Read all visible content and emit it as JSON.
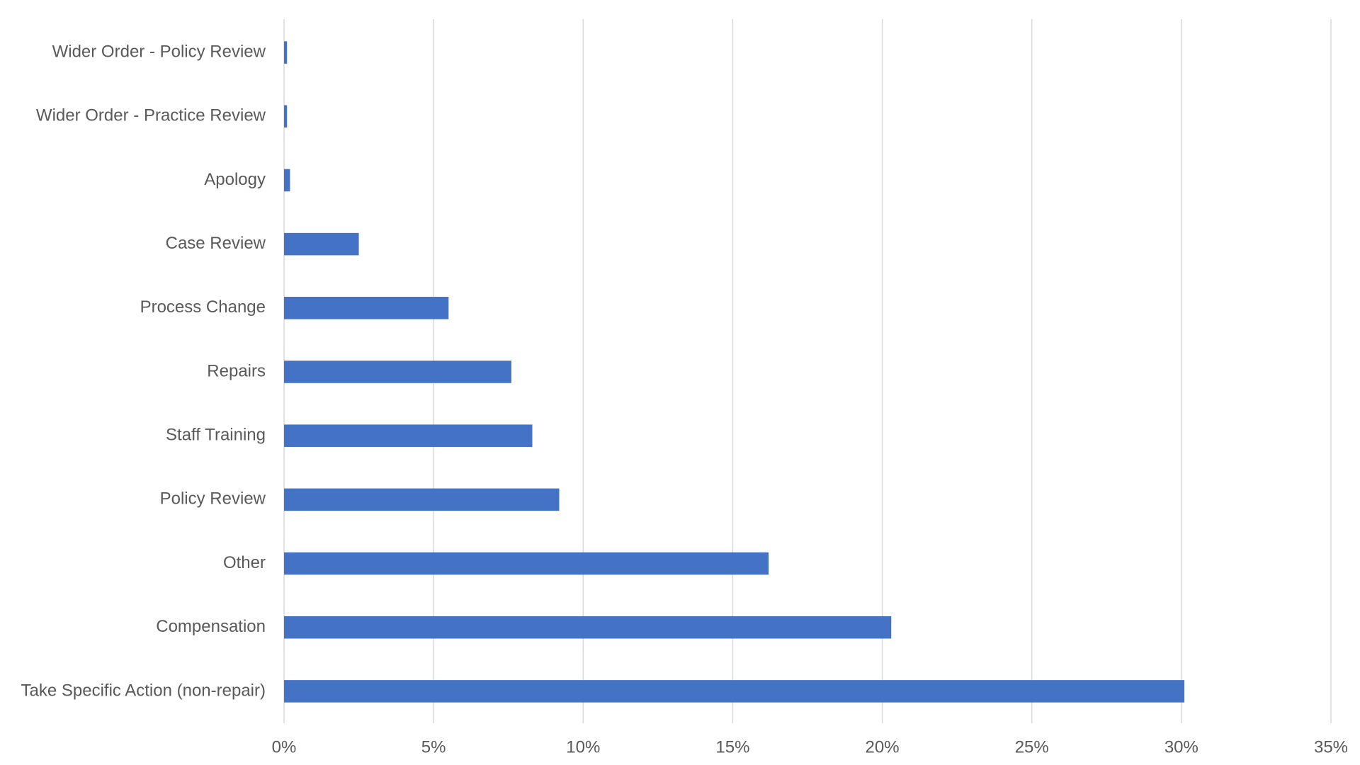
{
  "chart_data": {
    "type": "hbar",
    "categories": [
      "Wider Order - Policy Review",
      "Wider Order - Practice Review",
      "Apology",
      "Case Review",
      "Process Change",
      "Repairs",
      "Staff Training",
      "Policy Review",
      "Other",
      "Compensation",
      "Take Specific Action (non-repair)"
    ],
    "values": [
      0.1,
      0.1,
      0.2,
      2.5,
      5.5,
      7.6,
      8.3,
      9.2,
      16.2,
      20.3,
      30.1
    ],
    "color": "#4472c4",
    "xlim": [
      0,
      35
    ],
    "xticks": [
      {
        "value": 0,
        "label": "0%"
      },
      {
        "value": 5,
        "label": "5%"
      },
      {
        "value": 10,
        "label": "10%"
      },
      {
        "value": 15,
        "label": "15%"
      },
      {
        "value": 20,
        "label": "20%"
      },
      {
        "value": 25,
        "label": "25%"
      },
      {
        "value": 30,
        "label": "30%"
      },
      {
        "value": 35,
        "label": "35%"
      }
    ],
    "grid": true
  }
}
